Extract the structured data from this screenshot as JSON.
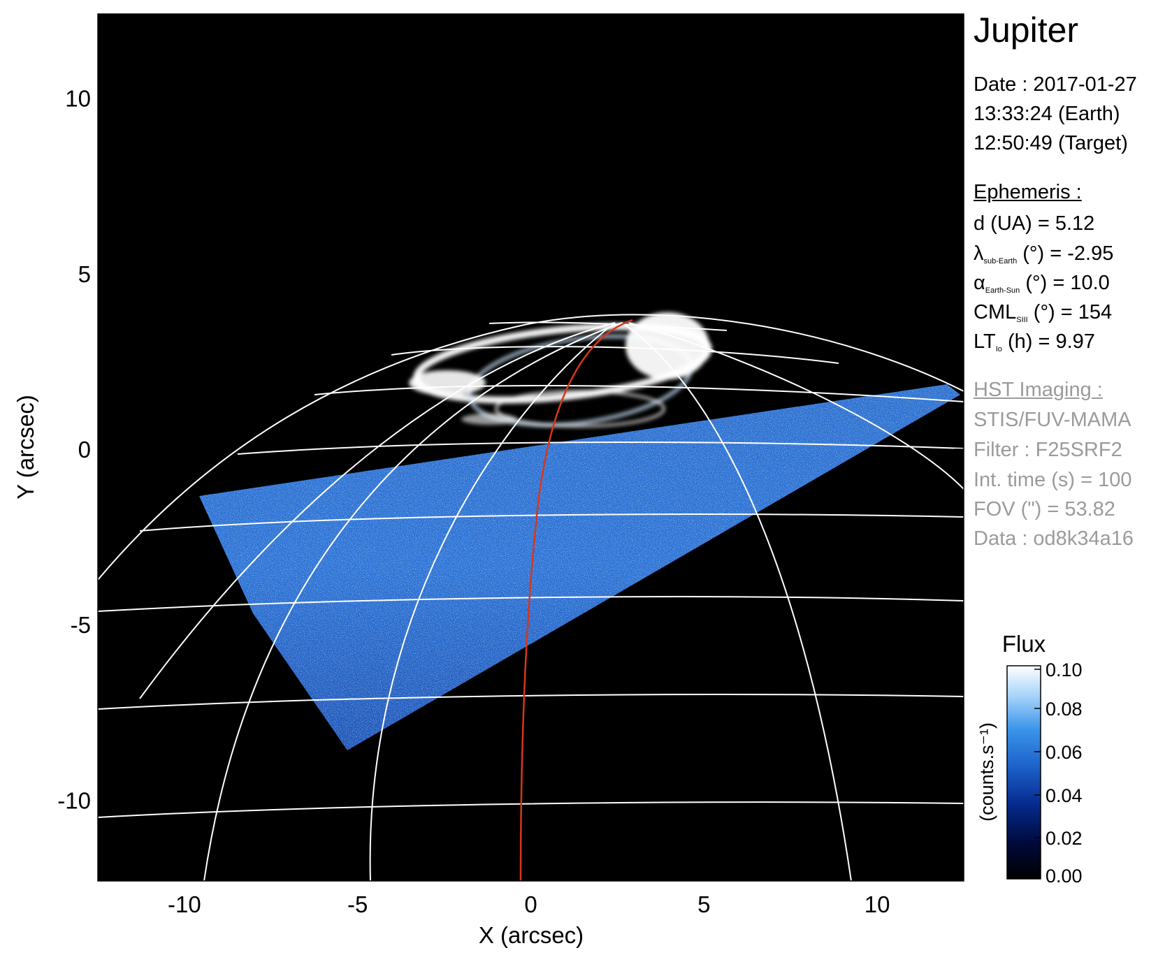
{
  "chart_data": {
    "type": "heatmap",
    "xlabel": "X (arcsec)",
    "ylabel": "Y (arcsec)",
    "xlim": [
      -12.5,
      12.5
    ],
    "ylim": [
      -12.3,
      12.4
    ],
    "xticks": [
      -10,
      -5,
      0,
      5,
      10
    ],
    "yticks": [
      10,
      5,
      0,
      -5,
      -10
    ],
    "grid": true,
    "colorbar": {
      "title": "Flux",
      "label": "(counts.s⁻¹)",
      "ticks": [
        "0.10",
        "0.08",
        "0.06",
        "0.04",
        "0.02",
        "0.00"
      ],
      "range": [
        0.0,
        0.1
      ],
      "colors": [
        "#000000",
        "#000a3c",
        "#062a8e",
        "#1c5fc8",
        "#3a94ea",
        "#a8d4fa",
        "#ffffff"
      ]
    },
    "footprint_color": "#d8361a"
  },
  "panel": {
    "title": "Jupiter",
    "date": "Date : 2017-01-27",
    "time_earth": "13:33:24 (Earth)",
    "time_target": "12:50:49 (Target)",
    "ephemeris_heading": "Ephemeris :",
    "distance": "d (UA)    = 5.12",
    "lat_sym": "λ",
    "lat_sub": "sub-Earth",
    "lat_rest": " (°) = -2.95",
    "phase_sym": "α",
    "phase_sub": "Earth-Sun",
    "phase_rest": " (°) = 10.0",
    "cml_sym": "CML",
    "cml_sub": "SIII",
    "cml_rest": " (°) = 154",
    "lt_sym": "LT",
    "lt_sub": "Io",
    "lt_rest": " (h) = 9.97",
    "hst_heading": "HST Imaging :",
    "instrument": "STIS/FUV-MAMA",
    "filter": "Filter : F25SRF2",
    "int_time": "Int. time (s) = 100",
    "fov": "FOV (\") = 53.82",
    "data_id": "Data : od8k34a16"
  }
}
